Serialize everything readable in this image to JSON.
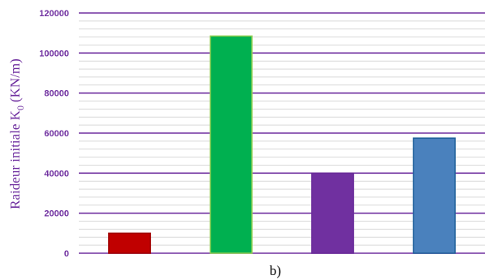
{
  "chart_data": {
    "type": "bar",
    "title": "",
    "xlabel": "b)",
    "ylabel": "Raideur initiale K",
    "ylabel_subscript": "0",
    "ylabel_unit": "(KN/m)",
    "ylim": [
      0,
      120000
    ],
    "yticks": [
      0,
      20000,
      40000,
      60000,
      80000,
      100000,
      120000
    ],
    "ytick_labels": [
      "0",
      "20000",
      "40000",
      "60000",
      "80000",
      "100000",
      "120000"
    ],
    "minor_step": 4000,
    "grid": true,
    "legend": "none",
    "categories": [
      "",
      "",
      "",
      ""
    ],
    "values": [
      10000,
      108500,
      40000,
      57500
    ],
    "colors": [
      "#c00000",
      "#00b050",
      "#7030a0",
      "#4a81bd"
    ],
    "edge_colors": [
      "#a00000",
      "#92d050",
      "#6a2c99",
      "#1f5f99"
    ],
    "major_grid_color": "#7030a0",
    "minor_grid_color": "#d9d9d9"
  }
}
